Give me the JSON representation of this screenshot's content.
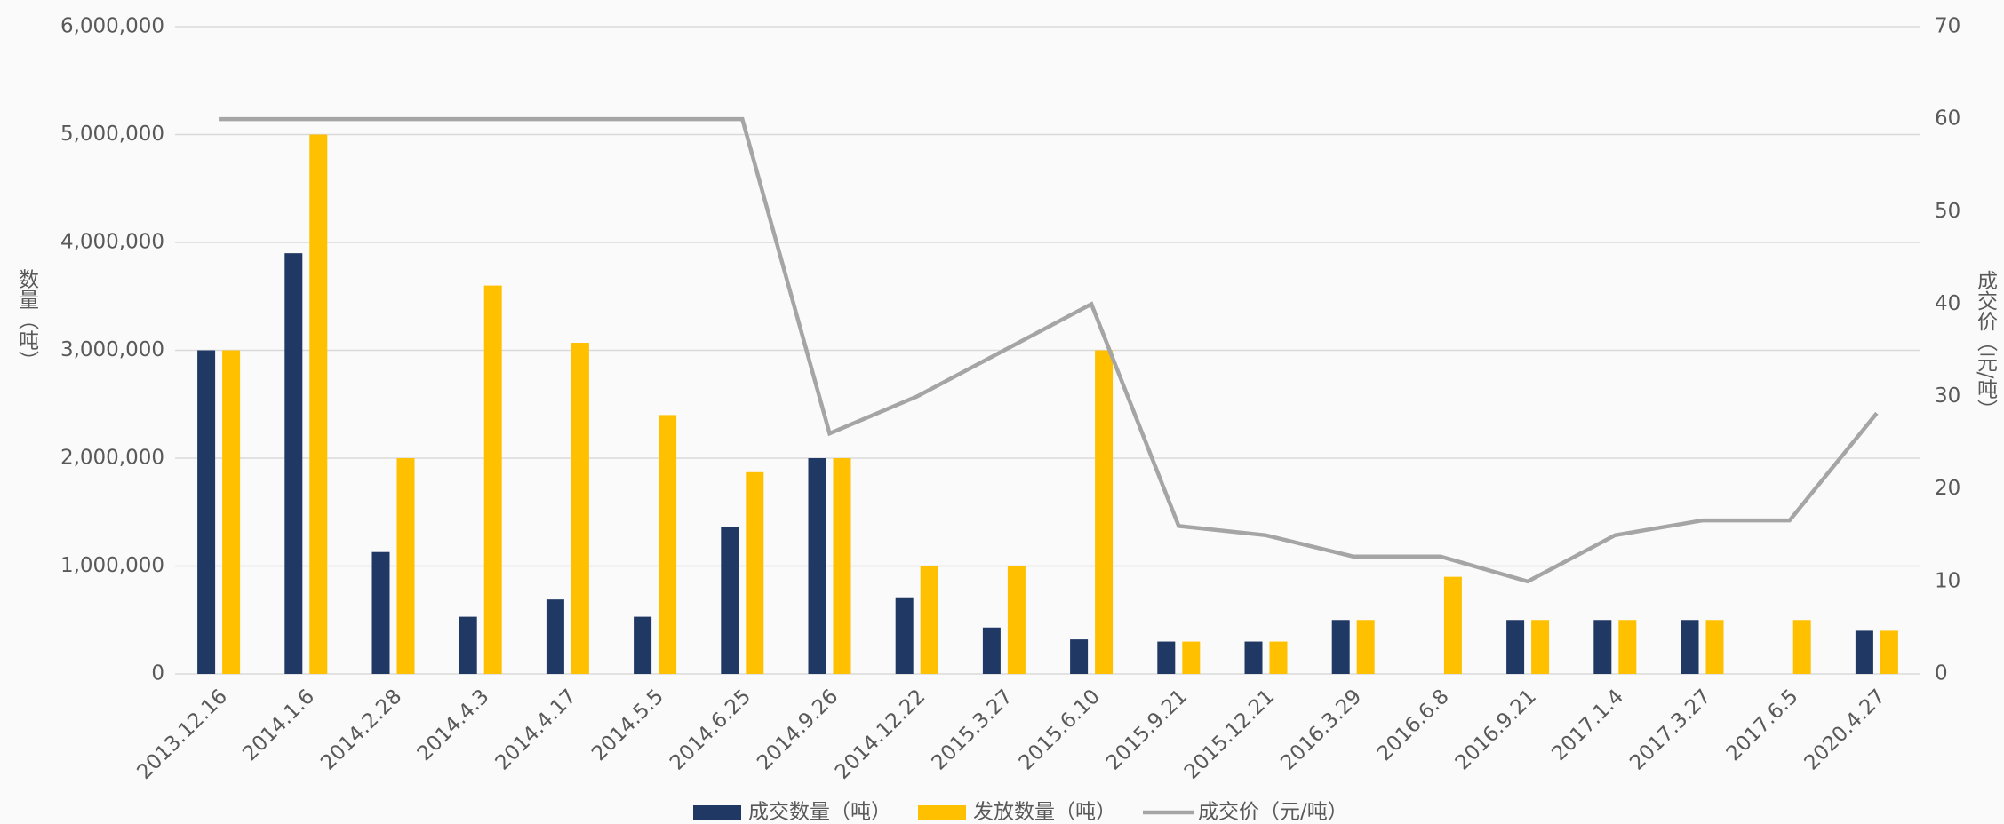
{
  "chart_data": {
    "type": "bar",
    "categories": [
      "2013.12.16",
      "2014.1.6",
      "2014.2.28",
      "2014.4.3",
      "2014.4.17",
      "2014.5.5",
      "2014.6.25",
      "2014.9.26",
      "2014.12.22",
      "2015.3.27",
      "2015.6.10",
      "2015.9.21",
      "2015.12.21",
      "2016.3.29",
      "2016.6.8",
      "2016.9.21",
      "2017.1.4",
      "2017.3.27",
      "2017.6.5",
      "2020.4.27"
    ],
    "y_label": "数量（吨）",
    "y2_label": "成交价（元/吨）",
    "series": [
      {
        "name": "成交数量（吨）",
        "type": "bar",
        "color": "#1f3864",
        "values": [
          3000000,
          3900000,
          1130000,
          530000,
          690000,
          530000,
          1360000,
          2000000,
          710000,
          430000,
          320000,
          300000,
          300000,
          500000,
          null,
          500000,
          500000,
          500000,
          null,
          400000
        ]
      },
      {
        "name": "发放数量（吨）",
        "type": "bar",
        "color": "#ffc000",
        "values": [
          3000000,
          5000000,
          2000000,
          3600000,
          3070000,
          2400000,
          1870000,
          2000000,
          1000000,
          1000000,
          3000000,
          300000,
          300000,
          500000,
          900000,
          500000,
          500000,
          500000,
          500000,
          400000
        ]
      },
      {
        "name": "成交价（元/吨）",
        "type": "line",
        "axis": "y2",
        "color": "#a5a5a5",
        "values": [
          60,
          60,
          60,
          60,
          60,
          60,
          60,
          26,
          30,
          35,
          40,
          16,
          15,
          12.7,
          12.7,
          10,
          15,
          16.6,
          16.6,
          28.2
        ]
      }
    ],
    "ylim": [
      0,
      6000000
    ],
    "yticks": [
      0,
      {
        "value": 1000000,
        "label": "1,000,000"
      },
      {
        "value": 2000000,
        "label": "2,000,000"
      },
      {
        "value": 3000000,
        "label": "3,000,000"
      },
      {
        "value": 4000000,
        "label": "4,000,000"
      },
      {
        "value": 5000000,
        "label": "5,000,000"
      },
      {
        "value": 6000000,
        "label": "6,000,000"
      }
    ],
    "y2lim": [
      0,
      70
    ],
    "y2ticks": [
      0,
      10,
      20,
      30,
      40,
      50,
      60,
      70
    ],
    "grid": true,
    "legend": "bottom"
  }
}
